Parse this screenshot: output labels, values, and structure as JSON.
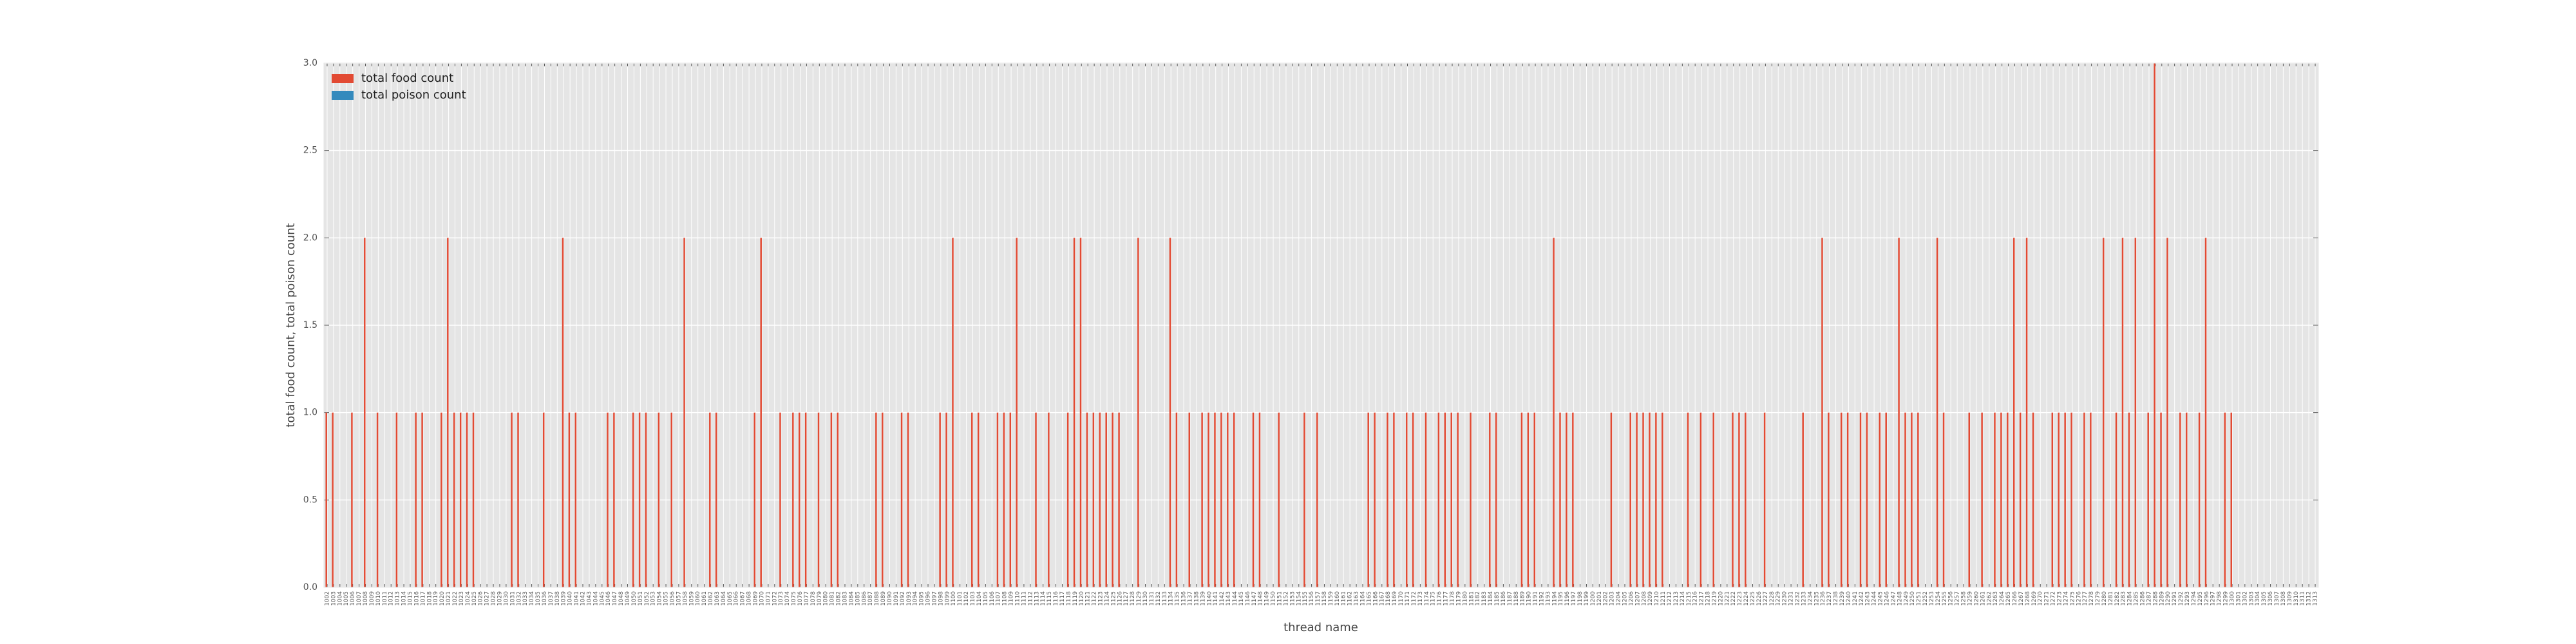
{
  "chart_data": {
    "type": "bar",
    "xlabel": "thread name",
    "ylabel": "total food count, total poison count",
    "categories": [
      "1002",
      "1003",
      "1004",
      "1005",
      "1006",
      "1007",
      "1008",
      "1009",
      "1010",
      "1011",
      "1012",
      "1013",
      "1014",
      "1015",
      "1016",
      "1017",
      "1018",
      "1019",
      "1020",
      "1021",
      "1022",
      "1023",
      "1024",
      "1025",
      "1026",
      "1027",
      "1028",
      "1029",
      "1030",
      "1031",
      "1032",
      "1033",
      "1034",
      "1035",
      "1036",
      "1037",
      "1038",
      "1039",
      "1040",
      "1041",
      "1042",
      "1043",
      "1044",
      "1045",
      "1046",
      "1047",
      "1048",
      "1049",
      "1050",
      "1051",
      "1052",
      "1053",
      "1054",
      "1055",
      "1056",
      "1057",
      "1058",
      "1059",
      "1060",
      "1061",
      "1062",
      "1063",
      "1064",
      "1065",
      "1066",
      "1067",
      "1068",
      "1069",
      "1070",
      "1071",
      "1072",
      "1073",
      "1074",
      "1075",
      "1076",
      "1077",
      "1078",
      "1079",
      "1080",
      "1081",
      "1082",
      "1083",
      "1084",
      "1085",
      "1086",
      "1087",
      "1088",
      "1089",
      "1090",
      "1091",
      "1092",
      "1093",
      "1094",
      "1095",
      "1096",
      "1097",
      "1098",
      "1099",
      "1100",
      "1101",
      "1102",
      "1103",
      "1104",
      "1105",
      "1106",
      "1107",
      "1108",
      "1109",
      "1110",
      "1111",
      "1112",
      "1113",
      "1114",
      "1115",
      "1116",
      "1117",
      "1118",
      "1119",
      "1120",
      "1121",
      "1122",
      "1123",
      "1124",
      "1125",
      "1126",
      "1127",
      "1128",
      "1129",
      "1130",
      "1131",
      "1132",
      "1133",
      "1134",
      "1135",
      "1136",
      "1137",
      "1138",
      "1139",
      "1140",
      "1141",
      "1142",
      "1143",
      "1144",
      "1145",
      "1146",
      "1147",
      "1148",
      "1149",
      "1150",
      "1151",
      "1152",
      "1153",
      "1154",
      "1155",
      "1156",
      "1157",
      "1158",
      "1159",
      "1160",
      "1161",
      "1162",
      "1163",
      "1164",
      "1165",
      "1166",
      "1167",
      "1168",
      "1169",
      "1170",
      "1171",
      "1172",
      "1173",
      "1174",
      "1175",
      "1176",
      "1177",
      "1178",
      "1179",
      "1180",
      "1181",
      "1182",
      "1183",
      "1184",
      "1185",
      "1186",
      "1187",
      "1188",
      "1189",
      "1190",
      "1191",
      "1192",
      "1193",
      "1194",
      "1195",
      "1196",
      "1197",
      "1198",
      "1199",
      "1200",
      "1201",
      "1202",
      "1203",
      "1204",
      "1205",
      "1206",
      "1207",
      "1208",
      "1209",
      "1210",
      "1211",
      "1212",
      "1213",
      "1214",
      "1215",
      "1216",
      "1217",
      "1218",
      "1219",
      "1220",
      "1221",
      "1222",
      "1223",
      "1224",
      "1225",
      "1226",
      "1227",
      "1228",
      "1229",
      "1230",
      "1231",
      "1232",
      "1233",
      "1234",
      "1235",
      "1236",
      "1237",
      "1238",
      "1239",
      "1240",
      "1241",
      "1242",
      "1243",
      "1244",
      "1245",
      "1246",
      "1247",
      "1248",
      "1249",
      "1250",
      "1251",
      "1252",
      "1253",
      "1254",
      "1255",
      "1256",
      "1257",
      "1258",
      "1259",
      "1260",
      "1261",
      "1262",
      "1263",
      "1264",
      "1265",
      "1266",
      "1267",
      "1268",
      "1269",
      "1270",
      "1271",
      "1272",
      "1273",
      "1274",
      "1275",
      "1276",
      "1277",
      "1278",
      "1279",
      "1280",
      "1281",
      "1282",
      "1283",
      "1284",
      "1285",
      "1286",
      "1287",
      "1288",
      "1289",
      "1290",
      "1291",
      "1292",
      "1293",
      "1294",
      "1295",
      "1296",
      "1297",
      "1298",
      "1299",
      "1300",
      "1301",
      "1302",
      "1303",
      "1304",
      "1305",
      "1306",
      "1307",
      "1308",
      "1309",
      "1310",
      "1311",
      "1312",
      "1313"
    ],
    "series": [
      {
        "name": "total food count",
        "color": "#e24a33",
        "values": [
          1,
          1,
          0,
          0,
          1,
          0,
          2,
          0,
          1,
          0,
          0,
          1,
          0,
          0,
          1,
          1,
          0,
          0,
          1,
          2,
          1,
          1,
          1,
          1,
          0,
          0,
          0,
          0,
          0,
          1,
          1,
          0,
          0,
          0,
          1,
          0,
          0,
          2,
          1,
          1,
          0,
          0,
          0,
          0,
          1,
          1,
          0,
          0,
          1,
          1,
          1,
          0,
          1,
          0,
          1,
          0,
          2,
          0,
          0,
          0,
          1,
          1,
          0,
          0,
          0,
          0,
          0,
          1,
          2,
          0,
          0,
          1,
          0,
          1,
          1,
          1,
          0,
          1,
          0,
          1,
          1,
          0,
          0,
          0,
          0,
          0,
          1,
          1,
          0,
          0,
          1,
          1,
          0,
          0,
          0,
          0,
          1,
          1,
          2,
          0,
          0,
          1,
          1,
          0,
          0,
          1,
          1,
          1,
          2,
          0,
          0,
          1,
          0,
          1,
          0,
          0,
          1,
          2,
          2,
          1,
          1,
          1,
          1,
          1,
          1,
          0,
          0,
          2,
          0,
          0,
          0,
          0,
          2,
          1,
          0,
          1,
          0,
          1,
          1,
          1,
          1,
          1,
          1,
          0,
          0,
          1,
          1,
          0,
          0,
          1,
          0,
          0,
          0,
          1,
          0,
          1,
          0,
          0,
          0,
          0,
          0,
          0,
          0,
          1,
          1,
          0,
          1,
          1,
          0,
          1,
          1,
          0,
          1,
          0,
          1,
          1,
          1,
          1,
          0,
          1,
          0,
          0,
          1,
          1,
          0,
          0,
          0,
          1,
          1,
          1,
          0,
          0,
          2,
          1,
          1,
          1,
          0,
          0,
          0,
          0,
          0,
          1,
          0,
          0,
          1,
          1,
          1,
          1,
          1,
          1,
          0,
          0,
          0,
          1,
          0,
          1,
          0,
          1,
          0,
          0,
          1,
          1,
          1,
          0,
          0,
          1,
          0,
          0,
          0,
          0,
          0,
          1,
          0,
          0,
          2,
          1,
          0,
          1,
          1,
          0,
          1,
          1,
          0,
          1,
          1,
          0,
          2,
          1,
          1,
          1,
          0,
          0,
          2,
          1,
          0,
          0,
          0,
          1,
          0,
          1,
          0,
          1,
          1,
          1,
          2,
          1,
          2,
          1,
          0,
          0,
          1,
          1,
          1,
          1,
          0,
          1,
          1,
          0,
          2,
          0,
          1,
          2,
          1,
          2,
          0,
          1,
          3,
          1,
          2,
          0,
          1,
          1,
          0,
          1,
          2,
          0,
          0,
          1,
          1,
          0,
          0,
          0,
          0,
          0,
          0,
          0,
          0,
          0,
          0,
          0,
          0,
          0
        ]
      },
      {
        "name": "total poison count",
        "color": "#348abd",
        "values": [
          0,
          0,
          0,
          0,
          0,
          0,
          0,
          0,
          0,
          0,
          0,
          0,
          0,
          0,
          0,
          0,
          0,
          0,
          0,
          0,
          0,
          0,
          0,
          0,
          0,
          0,
          0,
          0,
          0,
          0,
          0,
          0,
          0,
          0,
          0,
          0,
          0,
          0,
          0,
          0,
          0,
          0,
          0,
          0,
          0,
          0,
          0,
          0,
          0,
          0,
          0,
          0,
          0,
          0,
          0,
          0,
          0,
          0,
          0,
          0,
          0,
          0,
          0,
          0,
          0,
          0,
          0,
          0,
          0,
          0,
          0,
          0,
          0,
          0,
          0,
          0,
          0,
          0,
          0,
          0,
          0,
          0,
          0,
          0,
          0,
          0,
          0,
          0,
          0,
          0,
          0,
          0,
          0,
          0,
          0,
          0,
          0,
          0,
          0,
          0,
          0,
          0,
          0,
          0,
          0,
          0,
          0,
          0,
          0,
          0,
          0,
          0,
          0,
          0,
          0,
          0,
          0,
          0,
          0,
          0,
          0,
          0,
          0,
          0,
          0,
          0,
          0,
          0,
          0,
          0,
          0,
          0,
          0,
          0,
          0,
          0,
          0,
          0,
          0,
          0,
          0,
          0,
          0,
          0,
          0,
          0,
          0,
          0,
          0,
          0,
          0,
          0,
          0,
          0,
          0,
          0,
          0,
          0,
          0,
          0,
          0,
          0,
          0,
          0,
          0,
          0,
          0,
          0,
          0,
          0,
          0,
          0,
          0,
          0,
          0,
          0,
          0,
          0,
          0,
          0,
          0,
          0,
          0,
          0,
          0,
          0,
          0,
          0,
          0,
          0,
          0,
          0,
          0,
          0,
          0,
          0,
          0,
          0,
          0,
          0,
          0,
          0,
          0,
          0,
          0,
          0,
          0,
          0,
          0,
          0,
          0,
          0,
          0,
          0,
          0,
          0,
          0,
          0,
          0,
          0,
          0,
          0,
          0,
          0,
          0,
          0,
          0,
          0,
          0,
          0,
          0,
          0,
          0,
          0,
          0,
          0,
          0,
          0,
          0,
          0,
          0,
          0,
          0,
          0,
          0,
          0,
          0,
          0,
          0,
          0,
          0,
          0,
          0,
          0,
          0,
          0,
          0,
          0,
          0,
          0,
          0,
          0,
          0,
          0,
          0,
          0,
          0,
          0,
          0,
          0,
          0,
          0,
          0,
          0,
          0,
          0,
          0,
          0,
          0,
          0,
          0,
          0,
          0,
          0,
          0,
          0,
          0,
          0,
          0,
          0,
          0,
          0,
          0,
          0,
          0,
          0,
          0,
          0,
          0,
          0,
          0,
          0,
          0,
          0,
          0,
          0,
          0,
          0,
          0,
          0,
          0,
          0
        ]
      }
    ],
    "ylim": [
      0,
      3
    ],
    "yticks": [
      {
        "value": 0,
        "label": "0.0"
      },
      {
        "value": 0.5,
        "label": "0.5"
      },
      {
        "value": 1,
        "label": "1.0"
      },
      {
        "value": 1.5,
        "label": "1.5"
      },
      {
        "value": 2,
        "label": "2.0"
      },
      {
        "value": 2.5,
        "label": "2.5"
      },
      {
        "value": 3,
        "label": "3.0"
      }
    ],
    "grid": true,
    "legend": "upper left"
  }
}
